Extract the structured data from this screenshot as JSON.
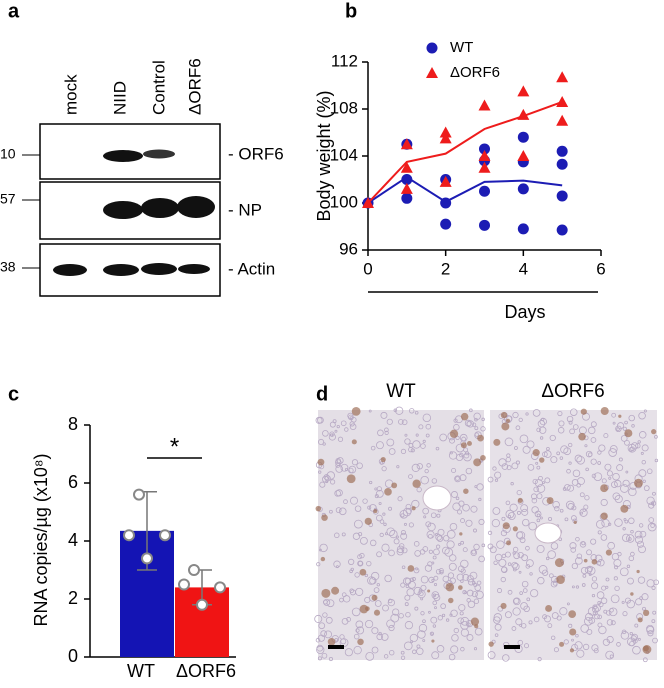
{
  "panel_labels": [
    "a",
    "b",
    "c",
    "d"
  ],
  "blot": {
    "lanes": [
      "mock",
      "NIID",
      "Control",
      "ΔORF6"
    ],
    "bands": [
      "- ORF6",
      "- NP",
      "- Actin"
    ],
    "markers": [
      10,
      57,
      38
    ]
  },
  "chart_data": [
    {
      "type": "scatter",
      "ylabel": "Body weight (%)",
      "xlabel": "Days",
      "xlim": [
        0,
        6
      ],
      "ylim": [
        96,
        112
      ],
      "xticks": [
        0,
        2,
        4,
        6
      ],
      "yticks": [
        96,
        100,
        104,
        108,
        112
      ],
      "legend": "top",
      "series": [
        {
          "name": "WT",
          "color": "#1c1cb4",
          "marker": "circle",
          "x": [
            0,
            1,
            1,
            1,
            2,
            2,
            2,
            3,
            3,
            3,
            3,
            4,
            4,
            4,
            4,
            5,
            5,
            5,
            5
          ],
          "y": [
            100,
            105,
            102,
            100.4,
            102,
            100,
            98.2,
            104.6,
            103.6,
            101,
            98.1,
            105.6,
            103.5,
            101.2,
            97.8,
            104.4,
            103.3,
            100.6,
            97.7
          ],
          "line_x": [
            0,
            1,
            2,
            3,
            4,
            5
          ],
          "line_y": [
            100,
            102.2,
            100.1,
            101.8,
            101.9,
            101.5
          ]
        },
        {
          "name": "ΔORF6",
          "color": "#ee1c1c",
          "marker": "triangle",
          "x": [
            0,
            1,
            1,
            1,
            2,
            2,
            2,
            3,
            3,
            3,
            4,
            4,
            4,
            5,
            5,
            5
          ],
          "y": [
            100,
            105,
            103,
            101.2,
            106,
            105.5,
            101.8,
            108.3,
            104,
            103,
            109.5,
            107.5,
            104,
            110.7,
            108.6,
            107
          ],
          "line_x": [
            0,
            1,
            2,
            3,
            4,
            5
          ],
          "line_y": [
            100,
            103.5,
            104.2,
            106.3,
            107.4,
            108.6
          ]
        }
      ]
    },
    {
      "type": "bar",
      "ylabel": "RNA copies/µg (x10⁸)",
      "categories": [
        "WT",
        "ΔORF6"
      ],
      "values": [
        4.35,
        2.4
      ],
      "errors": [
        1.35,
        0.6
      ],
      "colors": [
        "#1414b4",
        "#f01414"
      ],
      "points": [
        [
          5.6,
          4.2,
          4.2,
          3.4
        ],
        [
          3.0,
          2.5,
          2.4,
          1.8
        ]
      ],
      "ylim": [
        0,
        8
      ],
      "yticks": [
        0,
        2,
        4,
        6,
        8
      ],
      "significance": "*"
    }
  ],
  "histology": {
    "titles": [
      "WT",
      "ΔORF6"
    ]
  }
}
